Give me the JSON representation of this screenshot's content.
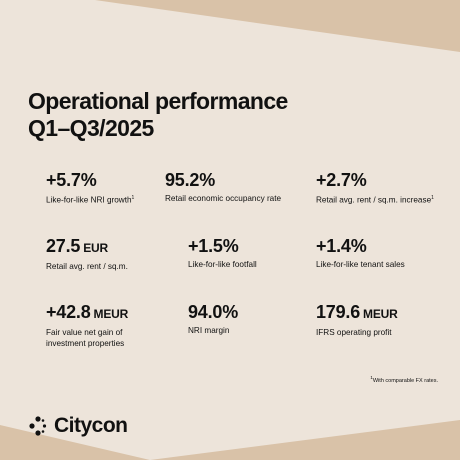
{
  "title": {
    "line1": "Operational performance",
    "line2": "Q1–Q3/2025"
  },
  "metrics": [
    {
      "value": "+5.7%",
      "unit": "",
      "label": "Like-for-like NRI growth",
      "note": "1"
    },
    {
      "value": "95.2%",
      "unit": "",
      "label": "Retail economic occupancy rate",
      "note": ""
    },
    {
      "value": "+2.7%",
      "unit": "",
      "label": "Retail avg. rent / sq.m. increase",
      "note": "1"
    },
    {
      "value": "27.5",
      "unit": "EUR",
      "label": "Retail avg. rent / sq.m.",
      "note": ""
    },
    {
      "value": "+1.5%",
      "unit": "",
      "label": "Like-for-like footfall",
      "note": ""
    },
    {
      "value": "+1.4%",
      "unit": "",
      "label": "Like-for-like tenant sales",
      "note": ""
    },
    {
      "value": "+42.8",
      "unit": "MEUR",
      "label": "Fair value net gain of investment properties",
      "note": ""
    },
    {
      "value": "94.0%",
      "unit": "",
      "label": "NRI margin",
      "note": ""
    },
    {
      "value": "179.6",
      "unit": "MEUR",
      "label": "IFRS operating profit",
      "note": ""
    }
  ],
  "footnote": {
    "marker": "1",
    "text": "With comparable FX rates."
  },
  "brand": {
    "name": "Citycon",
    "icon": "citycon-logo-icon"
  },
  "colors": {
    "background": "#d9c2a8",
    "panel": "#ede4da",
    "text": "#111111"
  }
}
